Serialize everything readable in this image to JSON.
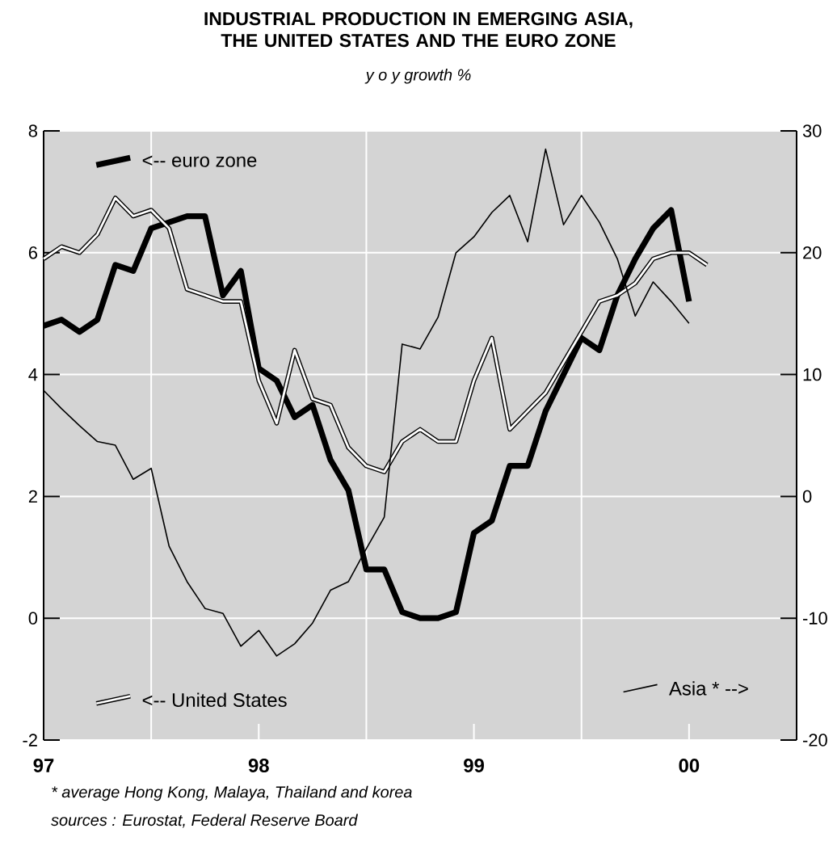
{
  "chart_data": {
    "type": "line",
    "title": "INDUSTRIAL PRODUCTION IN EMERGING ASIA, THE UNITED STATES AND THE EURO ZONE",
    "subtitle": "y o y growth %",
    "x": [
      "1997-01",
      "1997-02",
      "1997-03",
      "1997-04",
      "1997-05",
      "1997-06",
      "1997-07",
      "1997-08",
      "1997-09",
      "1997-10",
      "1997-11",
      "1997-12",
      "1998-01",
      "1998-02",
      "1998-03",
      "1998-04",
      "1998-05",
      "1998-06",
      "1998-07",
      "1998-08",
      "1998-09",
      "1998-10",
      "1998-11",
      "1998-12",
      "1999-01",
      "1999-02",
      "1999-03",
      "1999-04",
      "1999-05",
      "1999-06",
      "1999-07",
      "1999-08",
      "1999-09",
      "1999-10",
      "1999-11",
      "1999-12",
      "2000-01"
    ],
    "series": [
      {
        "name": "<-- euro zone",
        "color": "#000000",
        "values": [
          4.8,
          4.9,
          4.7,
          4.9,
          5.8,
          5.7,
          6.4,
          6.5,
          6.6,
          6.6,
          5.3,
          5.7,
          4.1,
          3.9,
          3.3,
          3.5,
          2.6,
          2.1,
          0.8,
          0.8,
          0.1,
          0.0,
          0.0,
          0.1,
          1.4,
          1.6,
          2.5,
          2.5,
          3.4,
          4.0,
          4.6,
          4.4,
          5.3,
          5.9,
          6.4,
          6.7,
          5.2
        ]
      },
      {
        "name": "<-- United States",
        "color": "#000000",
        "x": [
          "1997-01",
          "1997-02",
          "1997-03",
          "1997-04",
          "1997-05",
          "1997-06",
          "1997-07",
          "1997-08",
          "1997-09",
          "1997-10",
          "1997-11",
          "1997-12",
          "1998-01",
          "1998-02",
          "1998-03",
          "1998-04",
          "1998-05",
          "1998-06",
          "1998-07",
          "1998-08",
          "1998-09",
          "1998-10",
          "1998-11",
          "1998-12",
          "1999-01",
          "1999-02",
          "1999-03",
          "1999-04",
          "1999-05",
          "1999-06",
          "1999-07",
          "1999-08",
          "1999-09",
          "1999-10",
          "1999-11",
          "1999-12",
          "2000-01",
          "2000-02"
        ],
        "values": [
          5.9,
          6.1,
          6.0,
          6.3,
          6.9,
          6.6,
          6.7,
          6.4,
          5.4,
          5.3,
          5.2,
          5.2,
          3.9,
          3.2,
          4.4,
          3.6,
          3.5,
          2.8,
          2.5,
          2.4,
          2.9,
          3.1,
          2.9,
          2.9,
          3.9,
          4.6,
          3.1,
          3.4,
          3.7,
          4.2,
          4.7,
          5.2,
          5.3,
          5.5,
          5.9,
          6.0,
          6.0,
          5.8
        ]
      },
      {
        "name": "Asia * -->",
        "color": "#000000",
        "axis": "y2",
        "values": [
          8.7,
          7.2,
          5.8,
          4.5,
          4.2,
          1.4,
          2.3,
          -4.1,
          -7,
          -9.2,
          -9.6,
          -12.3,
          -11,
          -13.1,
          -12.1,
          -10.4,
          -7.7,
          -7,
          -4.3,
          -1.7,
          12.5,
          12.1,
          14.7,
          20,
          21.3,
          23.3,
          24.7,
          20.9,
          28.5,
          22.3,
          24.7,
          22.5,
          19.5,
          14.8,
          17.6,
          16,
          14.2
        ]
      }
    ],
    "xlim": [
      "1997-01",
      "2000-07"
    ],
    "xticks": [
      {
        "value": "1997-01",
        "label": "97"
      },
      {
        "value": "1997-07",
        "label": null
      },
      {
        "value": "1998-01",
        "label": "98"
      },
      {
        "value": "1998-07",
        "label": null
      },
      {
        "value": "1999-01",
        "label": "99"
      },
      {
        "value": "1999-07",
        "label": null
      },
      {
        "value": "2000-01",
        "label": "00"
      }
    ],
    "ylim": [
      -2,
      8
    ],
    "yticks": [
      -2,
      0,
      2,
      4,
      6,
      8
    ],
    "y2lim": [
      -20,
      30
    ],
    "y2ticks": [
      -20,
      -10,
      0,
      10,
      20,
      30
    ],
    "grid": true,
    "legend": "top left",
    "annotations": [
      "* average Hong Kong, Malaya, Thailand and korea",
      "sources : Eurostat, Federal Reserve Board"
    ]
  }
}
